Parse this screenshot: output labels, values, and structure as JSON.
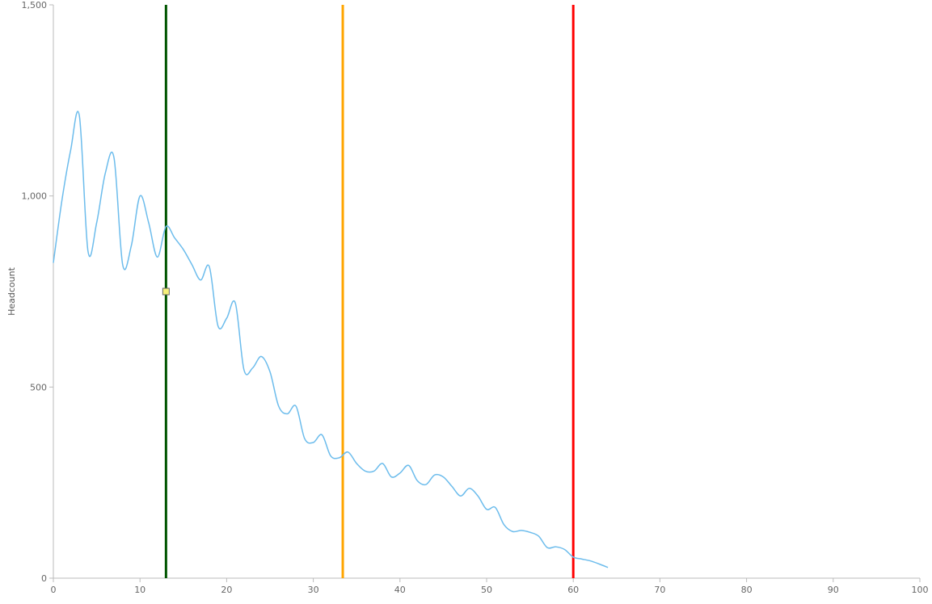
{
  "chart_data": {
    "type": "line",
    "title": "",
    "xlabel": "",
    "ylabel": "Headcount",
    "xlim": [
      0,
      100
    ],
    "ylim": [
      0,
      1500
    ],
    "x_ticks": [
      0,
      10,
      20,
      30,
      40,
      50,
      60,
      70,
      80,
      90,
      100
    ],
    "y_ticks": [
      0,
      500,
      1000,
      1500
    ],
    "x_tick_labels": [
      "0",
      "10",
      "20",
      "30",
      "40",
      "50",
      "60",
      "70",
      "80",
      "90",
      "100"
    ],
    "y_tick_labels": [
      "0",
      "500",
      "1,000",
      "1,500"
    ],
    "grid": false,
    "legend": "none",
    "series": [
      {
        "color": "#6cbcec",
        "x": [
          0,
          1,
          2,
          3,
          4,
          5,
          6,
          7,
          8,
          9,
          10,
          11,
          12,
          13,
          14,
          15,
          16,
          17,
          18,
          19,
          20,
          21,
          22,
          23,
          24,
          25,
          26,
          27,
          28,
          29,
          30,
          31,
          32,
          33,
          34,
          35,
          36,
          37,
          38,
          39,
          40,
          41,
          42,
          43,
          44,
          45,
          46,
          47,
          48,
          49,
          50,
          51,
          52,
          53,
          54,
          55,
          56,
          57,
          58,
          59,
          60,
          61,
          62,
          63,
          64
        ],
        "values": [
          825,
          990,
          1120,
          1210,
          855,
          930,
          1060,
          1100,
          820,
          870,
          1000,
          930,
          840,
          920,
          890,
          860,
          820,
          780,
          815,
          660,
          680,
          720,
          545,
          550,
          580,
          540,
          450,
          430,
          450,
          365,
          355,
          375,
          320,
          315,
          330,
          300,
          280,
          280,
          300,
          265,
          275,
          295,
          255,
          245,
          270,
          265,
          240,
          215,
          235,
          215,
          180,
          185,
          140,
          122,
          125,
          120,
          110,
          80,
          82,
          75,
          55,
          50,
          45,
          37,
          28
        ]
      }
    ],
    "vertical_lines": [
      {
        "x": 13,
        "color": "#005500"
      },
      {
        "x": 33.4,
        "color": "#ffa500"
      },
      {
        "x": 60,
        "color": "#ff0000"
      }
    ],
    "marker": {
      "x": 13,
      "y": 750,
      "color": "#f5f07a"
    }
  }
}
